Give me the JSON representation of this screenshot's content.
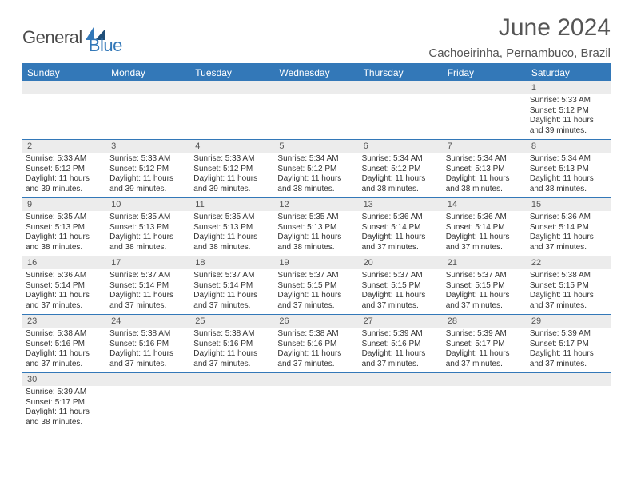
{
  "logo": {
    "text1": "General",
    "text2": "Blue"
  },
  "header": {
    "title": "June 2024",
    "location": "Cachoeirinha, Pernambuco, Brazil"
  },
  "colors": {
    "header_bg": "#3378b8",
    "header_text": "#ffffff",
    "daynum_bg": "#ececec",
    "border": "#3378b8",
    "title_color": "#555555",
    "logo_blue": "#3378b8",
    "logo_gray": "#4a4a4a"
  },
  "calendar": {
    "day_names": [
      "Sunday",
      "Monday",
      "Tuesday",
      "Wednesday",
      "Thursday",
      "Friday",
      "Saturday"
    ],
    "weeks": [
      [
        {
          "num": "",
          "lines": []
        },
        {
          "num": "",
          "lines": []
        },
        {
          "num": "",
          "lines": []
        },
        {
          "num": "",
          "lines": []
        },
        {
          "num": "",
          "lines": []
        },
        {
          "num": "",
          "lines": []
        },
        {
          "num": "1",
          "lines": [
            "Sunrise: 5:33 AM",
            "Sunset: 5:12 PM",
            "Daylight: 11 hours",
            "and 39 minutes."
          ]
        }
      ],
      [
        {
          "num": "2",
          "lines": [
            "Sunrise: 5:33 AM",
            "Sunset: 5:12 PM",
            "Daylight: 11 hours",
            "and 39 minutes."
          ]
        },
        {
          "num": "3",
          "lines": [
            "Sunrise: 5:33 AM",
            "Sunset: 5:12 PM",
            "Daylight: 11 hours",
            "and 39 minutes."
          ]
        },
        {
          "num": "4",
          "lines": [
            "Sunrise: 5:33 AM",
            "Sunset: 5:12 PM",
            "Daylight: 11 hours",
            "and 39 minutes."
          ]
        },
        {
          "num": "5",
          "lines": [
            "Sunrise: 5:34 AM",
            "Sunset: 5:12 PM",
            "Daylight: 11 hours",
            "and 38 minutes."
          ]
        },
        {
          "num": "6",
          "lines": [
            "Sunrise: 5:34 AM",
            "Sunset: 5:12 PM",
            "Daylight: 11 hours",
            "and 38 minutes."
          ]
        },
        {
          "num": "7",
          "lines": [
            "Sunrise: 5:34 AM",
            "Sunset: 5:13 PM",
            "Daylight: 11 hours",
            "and 38 minutes."
          ]
        },
        {
          "num": "8",
          "lines": [
            "Sunrise: 5:34 AM",
            "Sunset: 5:13 PM",
            "Daylight: 11 hours",
            "and 38 minutes."
          ]
        }
      ],
      [
        {
          "num": "9",
          "lines": [
            "Sunrise: 5:35 AM",
            "Sunset: 5:13 PM",
            "Daylight: 11 hours",
            "and 38 minutes."
          ]
        },
        {
          "num": "10",
          "lines": [
            "Sunrise: 5:35 AM",
            "Sunset: 5:13 PM",
            "Daylight: 11 hours",
            "and 38 minutes."
          ]
        },
        {
          "num": "11",
          "lines": [
            "Sunrise: 5:35 AM",
            "Sunset: 5:13 PM",
            "Daylight: 11 hours",
            "and 38 minutes."
          ]
        },
        {
          "num": "12",
          "lines": [
            "Sunrise: 5:35 AM",
            "Sunset: 5:13 PM",
            "Daylight: 11 hours",
            "and 38 minutes."
          ]
        },
        {
          "num": "13",
          "lines": [
            "Sunrise: 5:36 AM",
            "Sunset: 5:14 PM",
            "Daylight: 11 hours",
            "and 37 minutes."
          ]
        },
        {
          "num": "14",
          "lines": [
            "Sunrise: 5:36 AM",
            "Sunset: 5:14 PM",
            "Daylight: 11 hours",
            "and 37 minutes."
          ]
        },
        {
          "num": "15",
          "lines": [
            "Sunrise: 5:36 AM",
            "Sunset: 5:14 PM",
            "Daylight: 11 hours",
            "and 37 minutes."
          ]
        }
      ],
      [
        {
          "num": "16",
          "lines": [
            "Sunrise: 5:36 AM",
            "Sunset: 5:14 PM",
            "Daylight: 11 hours",
            "and 37 minutes."
          ]
        },
        {
          "num": "17",
          "lines": [
            "Sunrise: 5:37 AM",
            "Sunset: 5:14 PM",
            "Daylight: 11 hours",
            "and 37 minutes."
          ]
        },
        {
          "num": "18",
          "lines": [
            "Sunrise: 5:37 AM",
            "Sunset: 5:14 PM",
            "Daylight: 11 hours",
            "and 37 minutes."
          ]
        },
        {
          "num": "19",
          "lines": [
            "Sunrise: 5:37 AM",
            "Sunset: 5:15 PM",
            "Daylight: 11 hours",
            "and 37 minutes."
          ]
        },
        {
          "num": "20",
          "lines": [
            "Sunrise: 5:37 AM",
            "Sunset: 5:15 PM",
            "Daylight: 11 hours",
            "and 37 minutes."
          ]
        },
        {
          "num": "21",
          "lines": [
            "Sunrise: 5:37 AM",
            "Sunset: 5:15 PM",
            "Daylight: 11 hours",
            "and 37 minutes."
          ]
        },
        {
          "num": "22",
          "lines": [
            "Sunrise: 5:38 AM",
            "Sunset: 5:15 PM",
            "Daylight: 11 hours",
            "and 37 minutes."
          ]
        }
      ],
      [
        {
          "num": "23",
          "lines": [
            "Sunrise: 5:38 AM",
            "Sunset: 5:16 PM",
            "Daylight: 11 hours",
            "and 37 minutes."
          ]
        },
        {
          "num": "24",
          "lines": [
            "Sunrise: 5:38 AM",
            "Sunset: 5:16 PM",
            "Daylight: 11 hours",
            "and 37 minutes."
          ]
        },
        {
          "num": "25",
          "lines": [
            "Sunrise: 5:38 AM",
            "Sunset: 5:16 PM",
            "Daylight: 11 hours",
            "and 37 minutes."
          ]
        },
        {
          "num": "26",
          "lines": [
            "Sunrise: 5:38 AM",
            "Sunset: 5:16 PM",
            "Daylight: 11 hours",
            "and 37 minutes."
          ]
        },
        {
          "num": "27",
          "lines": [
            "Sunrise: 5:39 AM",
            "Sunset: 5:16 PM",
            "Daylight: 11 hours",
            "and 37 minutes."
          ]
        },
        {
          "num": "28",
          "lines": [
            "Sunrise: 5:39 AM",
            "Sunset: 5:17 PM",
            "Daylight: 11 hours",
            "and 37 minutes."
          ]
        },
        {
          "num": "29",
          "lines": [
            "Sunrise: 5:39 AM",
            "Sunset: 5:17 PM",
            "Daylight: 11 hours",
            "and 37 minutes."
          ]
        }
      ],
      [
        {
          "num": "30",
          "lines": [
            "Sunrise: 5:39 AM",
            "Sunset: 5:17 PM",
            "Daylight: 11 hours",
            "and 38 minutes."
          ]
        },
        {
          "num": "",
          "lines": []
        },
        {
          "num": "",
          "lines": []
        },
        {
          "num": "",
          "lines": []
        },
        {
          "num": "",
          "lines": []
        },
        {
          "num": "",
          "lines": []
        },
        {
          "num": "",
          "lines": []
        }
      ]
    ]
  }
}
